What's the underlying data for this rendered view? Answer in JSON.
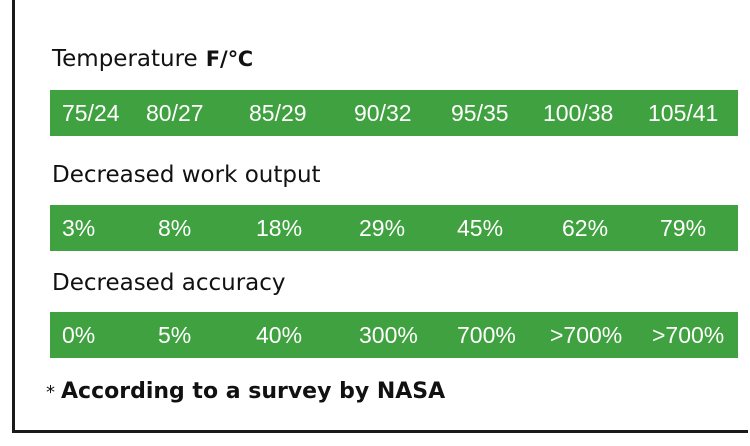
{
  "temperature": {
    "title": "Temperature",
    "unit": "F/℃",
    "values": [
      "75/24",
      "80/27",
      "85/29",
      "90/32",
      "95/35",
      "100/38",
      "105/41"
    ]
  },
  "work_output": {
    "title": "Decreased work output",
    "values": [
      "3%",
      "8%",
      "18%",
      "29%",
      "45%",
      "62%",
      "79%"
    ]
  },
  "accuracy": {
    "title": "Decreased accuracy",
    "values": [
      "0%",
      "5%",
      "40%",
      "300%",
      "700%",
      ">700%",
      ">700%"
    ]
  },
  "footnote": {
    "marker": "*",
    "text": "According to a survey by NASA"
  },
  "colors": {
    "bar": "#3fa13f",
    "text_on_bar": "#ffffff"
  }
}
